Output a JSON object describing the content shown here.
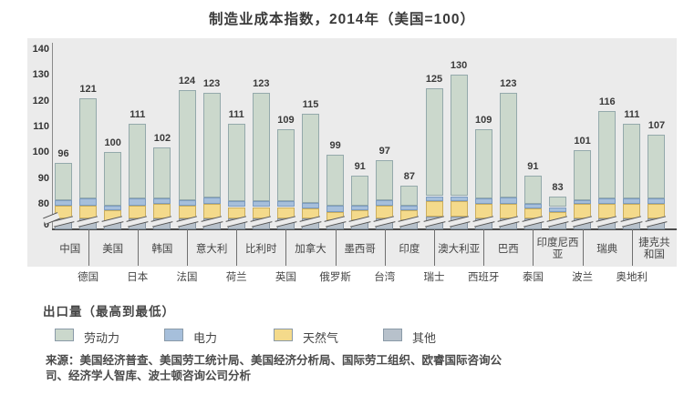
{
  "title": "制造业成本指数，2014年（美国=100）",
  "note": "出口量（最高到最低）",
  "source": {
    "line1": "来源：美国经济普查、美国劳工统计局、美国经济分析局、国际劳工组织、欧睿国际咨询公",
    "line2": "司、经济学人智库、波士顿咨询公司分析"
  },
  "colors": {
    "panel_background": "#ebebeb",
    "labor": "#cbd8cc",
    "electricity": "#a6bfdb",
    "natural_gas": "#f4da8b",
    "other": "#b7c1cb",
    "axis": "#4c4c4c"
  },
  "chart_data": {
    "type": "bar",
    "stacked": true,
    "title": "制造业成本指数，2014年（美国=100）",
    "xlabel": "",
    "ylabel": "",
    "y_ticks": [
      0,
      80,
      90,
      100,
      110,
      120,
      130,
      140
    ],
    "ylim": [
      0,
      140
    ],
    "axis_break_between": [
      0,
      80
    ],
    "grid": false,
    "legend_position": "bottom",
    "legend": [
      {
        "name": "劳动力",
        "color": "#cbd8cc"
      },
      {
        "name": "电力",
        "color": "#a6bfdb"
      },
      {
        "name": "天然气",
        "color": "#f4da8b"
      },
      {
        "name": "其他",
        "color": "#b7c1cb"
      }
    ],
    "bars": [
      {
        "country": "中国",
        "total": 96,
        "other_top": 75.5,
        "gas_top": 79.5,
        "elec_top": 81.5
      },
      {
        "country": "德国",
        "total": 121,
        "other_top": 75.5,
        "gas_top": 79.5,
        "elec_top": 82
      },
      {
        "country": "美国",
        "total": 100,
        "other_top": 74.5,
        "gas_top": 78,
        "elec_top": 79.5
      },
      {
        "country": "日本",
        "total": 111,
        "other_top": 75.5,
        "gas_top": 79.5,
        "elec_top": 82
      },
      {
        "country": "韩国",
        "total": 102,
        "other_top": 75.5,
        "gas_top": 80,
        "elec_top": 82
      },
      {
        "country": "法国",
        "total": 124,
        "other_top": 75.5,
        "gas_top": 79.5,
        "elec_top": 81.5
      },
      {
        "country": "意大利",
        "total": 123,
        "other_top": 75.5,
        "gas_top": 80,
        "elec_top": 82.5
      },
      {
        "country": "荷兰",
        "total": 111,
        "other_top": 75.5,
        "gas_top": 79,
        "elec_top": 81
      },
      {
        "country": "比利时",
        "total": 123,
        "other_top": 75.5,
        "gas_top": 79,
        "elec_top": 81
      },
      {
        "country": "英国",
        "total": 109,
        "other_top": 75.5,
        "gas_top": 79,
        "elec_top": 81
      },
      {
        "country": "加拿大",
        "total": 115,
        "other_top": 75.5,
        "gas_top": 78.5,
        "elec_top": 80.5
      },
      {
        "country": "俄罗斯",
        "total": 99,
        "other_top": 75,
        "gas_top": 77.5,
        "elec_top": 79.5
      },
      {
        "country": "墨西哥",
        "total": 91,
        "other_top": 75,
        "gas_top": 78,
        "elec_top": 79.5
      },
      {
        "country": "台湾",
        "total": 97,
        "other_top": 75.5,
        "gas_top": 79.5,
        "elec_top": 81.5
      },
      {
        "country": "印度",
        "total": 87,
        "other_top": 75,
        "gas_top": 78,
        "elec_top": 79.5
      },
      {
        "country": "瑞士",
        "total": 125,
        "other_top": 76,
        "gas_top": 81,
        "elec_top": 83
      },
      {
        "country": "澳大利亚",
        "total": 130,
        "other_top": 76,
        "gas_top": 81,
        "elec_top": 83
      },
      {
        "country": "西班牙",
        "total": 109,
        "other_top": 75.5,
        "gas_top": 80,
        "elec_top": 82
      },
      {
        "country": "巴西",
        "total": 123,
        "other_top": 75.5,
        "gas_top": 80,
        "elec_top": 82.5
      },
      {
        "country": "泰国",
        "total": 91,
        "other_top": 75.5,
        "gas_top": 78.5,
        "elec_top": 80
      },
      {
        "country": "印度尼西亚",
        "total": 83,
        "other_top": 74.5,
        "gas_top": 77.5,
        "elec_top": 79
      },
      {
        "country": "波兰",
        "total": 101,
        "other_top": 75.5,
        "gas_top": 80,
        "elec_top": 81.5
      },
      {
        "country": "瑞典",
        "total": 116,
        "other_top": 75.5,
        "gas_top": 80,
        "elec_top": 82
      },
      {
        "country": "奥地利",
        "total": 111,
        "other_top": 75.5,
        "gas_top": 80,
        "elec_top": 82
      },
      {
        "country": "捷克共和国",
        "total": 107,
        "other_top": 75.5,
        "gas_top": 80,
        "elec_top": 82
      }
    ]
  }
}
